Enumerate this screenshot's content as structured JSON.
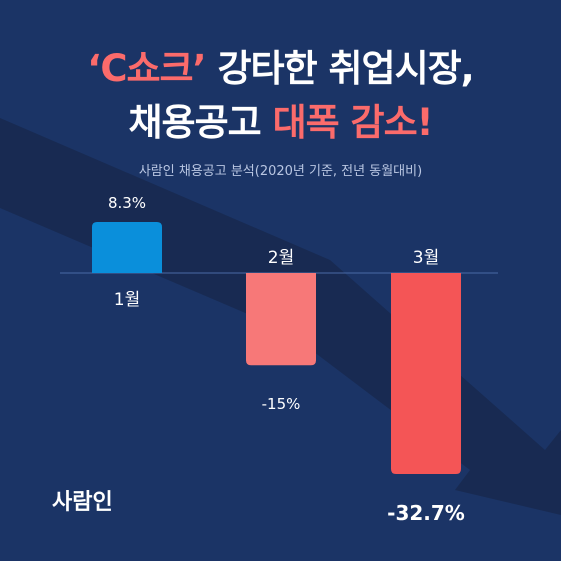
{
  "title": {
    "line1_accent": "‘C쇼크’",
    "line1_rest": " 강타한 취업시장,",
    "line2_rest": "채용공고 ",
    "line2_accent": "대폭 감소!"
  },
  "subtitle": "사람인 채용공고 분석(2020년 기준, 전년 동월대비)",
  "brand": "사람인",
  "colors": {
    "background": "#1b3466",
    "accent": "#fb6b6b",
    "positive_bar": "#0a8fdb",
    "feb_bar": "#f77878",
    "mar_bar": "#f45556"
  },
  "chart_data": {
    "type": "bar",
    "categories": [
      "1월",
      "2월",
      "3월"
    ],
    "values": [
      8.3,
      -15,
      -32.7
    ],
    "value_labels": [
      "8.3%",
      "-15%",
      "-32.7%"
    ],
    "ylim": [
      -32.7,
      8.3
    ],
    "grid": false,
    "legend": "none"
  }
}
